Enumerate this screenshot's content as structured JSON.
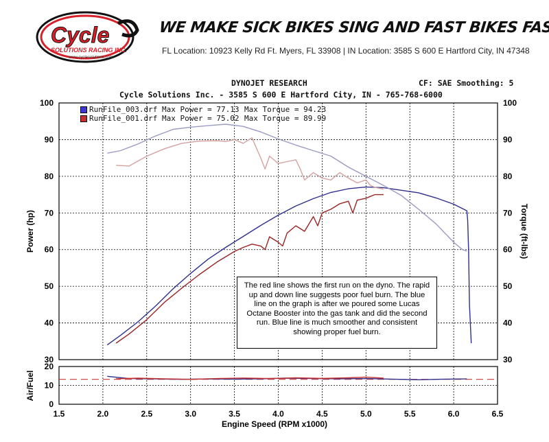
{
  "header": {
    "logo_text": "Cycle",
    "logo_subtext": "SOLUTIONS RACING INC.",
    "logo_url": "www.cyclesolutions.com",
    "slogan": "WE MAKE SICK BIKES SING AND FAST BIKES FASTER!",
    "locations": "FL Location: 10923 Kelly Rd Ft. Myers, FL 33908  |  IN Location: 3585 S 600 E Hartford City, IN 47348",
    "research_title": "DYNOJET RESEARCH",
    "shop_info": "Cycle Solutions Inc. - 3585 S 600 E Hartford City, IN - 765-768-6000",
    "cf_smoothing": "CF: SAE  Smoothing: 5"
  },
  "colors": {
    "blue_run": "#2e2e8c",
    "red_run": "#9a2424",
    "blue_torque": "#9a9ac4",
    "red_torque": "#d6a0a0",
    "afr_target": "#c83c3c",
    "grid": "#000000",
    "logo_red": "#d8202a"
  },
  "annotation": "The red line shows the first run on the dyno. The rapid up and down line suggests poor fuel burn. The blue line on the graph is after we poured some Lucas Octane Booster into the gas tank and did the second run.  Blue line is much smoother and consistent showing proper fuel burn.",
  "chart_data": {
    "type": "line",
    "xlabel": "Engine Speed (RPM x1000)",
    "ylabel_left": "Power (hp)",
    "ylabel_right": "Torque (ft-lbs)",
    "xlim": [
      1.5,
      6.5
    ],
    "ylim": [
      30,
      100
    ],
    "x_ticks": [
      "1.5",
      "2.0",
      "2.5",
      "3.0",
      "3.5",
      "4.0",
      "4.5",
      "5.0",
      "5.5",
      "6.0",
      "6.5"
    ],
    "y_ticks_left": [
      "30",
      "40",
      "50",
      "60",
      "70",
      "80",
      "90",
      "100"
    ],
    "y_ticks_right": [
      "30",
      "40",
      "50",
      "60",
      "70",
      "80",
      "90",
      "100"
    ],
    "grid": true,
    "legend": [
      {
        "label": "RunFile_003.drf Max Power = 77.13",
        "torque_label": "Max Torque = 94.23",
        "color": "#3a3ad0"
      },
      {
        "label": "RunFile_001.drf Max Power = 75.02",
        "torque_label": "Max Torque = 89.99",
        "color": "#c83030"
      }
    ],
    "series": [
      {
        "run": "RunFile_003",
        "measure": "power",
        "color": "#2e2e8c",
        "x": [
          2.05,
          2.2,
          2.4,
          2.6,
          2.8,
          3.0,
          3.2,
          3.4,
          3.6,
          3.8,
          4.0,
          4.2,
          4.4,
          4.6,
          4.8,
          5.0,
          5.2,
          5.4,
          5.6,
          5.8,
          6.0,
          6.15,
          6.16,
          6.17,
          6.18,
          6.2
        ],
        "y": [
          34.0,
          36.6,
          40.3,
          44.6,
          49.3,
          53.5,
          57.4,
          60.6,
          63.6,
          66.6,
          69.4,
          71.9,
          73.9,
          75.6,
          76.6,
          77.1,
          76.9,
          76.2,
          75.5,
          74.1,
          72.4,
          70.6,
          68,
          60,
          45,
          34.5
        ]
      },
      {
        "run": "RunFile_003",
        "measure": "torque",
        "color": "#9a9ac4",
        "x": [
          2.05,
          2.2,
          2.4,
          2.6,
          2.8,
          3.0,
          3.2,
          3.4,
          3.6,
          3.8,
          4.0,
          4.2,
          4.4,
          4.6,
          4.8,
          5.0,
          5.2,
          5.4,
          5.6,
          5.8,
          6.0,
          6.1,
          6.15
        ],
        "y": [
          86.3,
          87.0,
          88.8,
          91.0,
          92.8,
          93.4,
          93.8,
          94.2,
          93.6,
          92.1,
          90.2,
          88.5,
          87.0,
          85.5,
          82.5,
          80.0,
          77.5,
          74.8,
          71.0,
          67.0,
          62.0,
          60.0,
          59.6
        ]
      },
      {
        "run": "RunFile_001",
        "measure": "power",
        "color": "#9a2424",
        "x": [
          2.15,
          2.3,
          2.5,
          2.7,
          2.9,
          3.1,
          3.3,
          3.5,
          3.6,
          3.7,
          3.8,
          3.85,
          3.9,
          4.0,
          4.05,
          4.1,
          4.2,
          4.3,
          4.4,
          4.45,
          4.5,
          4.6,
          4.7,
          4.8,
          4.85,
          4.9,
          5.0,
          5.05,
          5.1,
          5.2
        ],
        "y": [
          34.5,
          37.0,
          40.9,
          45.6,
          49.5,
          53.2,
          56.6,
          59.5,
          60.6,
          61.5,
          61.0,
          60.0,
          63.5,
          62.0,
          61.0,
          64.5,
          66.5,
          65.0,
          69.0,
          66.5,
          70.0,
          71.0,
          72.5,
          73.2,
          70.0,
          73.5,
          74.0,
          74.5,
          75.0,
          75.0
        ]
      },
      {
        "run": "RunFile_001",
        "measure": "torque",
        "color": "#d6a0a0",
        "x": [
          2.15,
          2.3,
          2.5,
          2.7,
          2.9,
          3.1,
          3.3,
          3.4,
          3.5,
          3.6,
          3.7,
          3.8,
          3.85,
          3.9,
          4.0,
          4.1,
          4.2,
          4.25,
          4.3,
          4.4,
          4.5,
          4.6,
          4.7,
          4.8,
          4.9,
          5.0,
          5.05,
          5.1,
          5.2
        ],
        "y": [
          83.0,
          82.8,
          85.5,
          87.5,
          89.0,
          89.6,
          89.7,
          89.5,
          90.0,
          89.0,
          90.5,
          85.0,
          82.0,
          85.5,
          83.5,
          84.0,
          84.5,
          82.0,
          79.0,
          81.0,
          79.5,
          79.0,
          81.0,
          79.5,
          78.2,
          79.0,
          77.5,
          77.0,
          76.5
        ]
      }
    ],
    "afr": {
      "ylabel": "Air/Fuel",
      "ylim": [
        0,
        20
      ],
      "y_ticks": [
        "0",
        "10",
        "20"
      ],
      "target": 13.2,
      "series": [
        {
          "run": "RunFile_003",
          "color": "#2e2e8c",
          "x": [
            2.05,
            2.3,
            2.6,
            2.9,
            3.2,
            3.5,
            3.8,
            4.1,
            4.4,
            4.7,
            5.0,
            5.3,
            5.6,
            5.9,
            6.15
          ],
          "y": [
            14.8,
            13.6,
            13.4,
            13.2,
            13.4,
            13.3,
            13.5,
            13.8,
            13.6,
            13.5,
            13.6,
            13.3,
            13.0,
            13.3,
            13.4
          ]
        },
        {
          "run": "RunFile_001",
          "color": "#c83030",
          "x": [
            2.15,
            2.4,
            2.7,
            3.0,
            3.3,
            3.6,
            3.9,
            4.2,
            4.5,
            4.8,
            5.0,
            5.2
          ],
          "y": [
            13.5,
            13.8,
            13.5,
            13.2,
            13.6,
            13.9,
            13.6,
            14.0,
            13.7,
            14.0,
            14.4,
            13.8
          ]
        }
      ]
    }
  }
}
